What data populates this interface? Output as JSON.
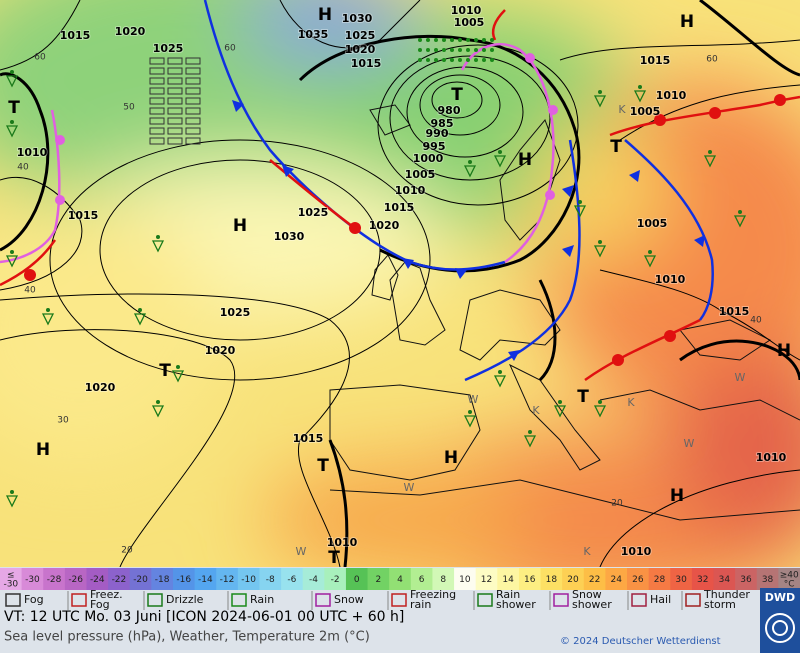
{
  "map": {
    "isobar_labels": [
      "1015",
      "1020",
      "1025",
      "1030",
      "1035",
      "1025",
      "1020",
      "1015",
      "1010",
      "1005",
      "980",
      "985",
      "990",
      "995",
      "1000",
      "1005",
      "1010",
      "1015",
      "1020",
      "1025",
      "1030",
      "1025",
      "1020",
      "1020",
      "1015",
      "1010",
      "1010",
      "1010",
      "1015",
      "1010",
      "1005",
      "1005",
      "1010",
      "1015",
      "1010",
      "1015"
    ],
    "pressure_centers": [
      "H",
      "H",
      "T",
      "H",
      "T",
      "H",
      "T",
      "T",
      "H",
      "H",
      "T",
      "T",
      "H",
      "H",
      "T"
    ],
    "temperature_labels": [
      "60",
      "50",
      "40",
      "40",
      "30",
      "20",
      "60",
      "60",
      "40",
      "20"
    ],
    "region_letters": [
      "W",
      "K",
      "W",
      "W",
      "K",
      "W",
      "W",
      "K",
      "K"
    ]
  },
  "color_scale": {
    "labels": [
      "≤\n-30",
      -30,
      -28,
      -26,
      -24,
      -22,
      -20,
      -18,
      -16,
      -14,
      -12,
      -10,
      -8,
      -6,
      -4,
      -2,
      0,
      2,
      4,
      6,
      8,
      10,
      12,
      14,
      16,
      18,
      20,
      22,
      24,
      26,
      28,
      30,
      32,
      34,
      36,
      38,
      "≥40\n°C"
    ],
    "colors": [
      "#e6a8e6",
      "#d88ad8",
      "#c874cc",
      "#b866c4",
      "#a45cc4",
      "#8c62cc",
      "#7472d4",
      "#6484e0",
      "#5494e8",
      "#54a6f0",
      "#64b6f0",
      "#74c6f0",
      "#86d4f0",
      "#98e2ee",
      "#a6ecd8",
      "#a8f0bc",
      "#56c256",
      "#72d264",
      "#92e074",
      "#b2ee92",
      "#d2f8b6",
      "#fdfdf0",
      "#fdfcc4",
      "#fdf6a2",
      "#fdee82",
      "#fde064",
      "#fdd054",
      "#fdbe46",
      "#fda844",
      "#f99244",
      "#f57a44",
      "#ef6444",
      "#e75448",
      "#db5652",
      "#cb6464",
      "#b67474",
      "#a48484"
    ]
  },
  "legend": [
    "Fog",
    "Freez.\nFog",
    "Drizzle",
    "Rain",
    "Snow",
    "Freezing\nrain",
    "Rain\nshower",
    "Snow\nshower",
    "Hail",
    "Thunder\nstorm"
  ],
  "footer": {
    "valid_time": "VT: 12 UTC Mo.   03 Juni [ICON 2024-06-01  00 UTC + 60 h]",
    "description": "Sea level pressure (hPa), Weather, Temperature 2m (°C)",
    "copyright": "© 2024 Deutscher Wetterdienst",
    "logo": "DWD"
  }
}
